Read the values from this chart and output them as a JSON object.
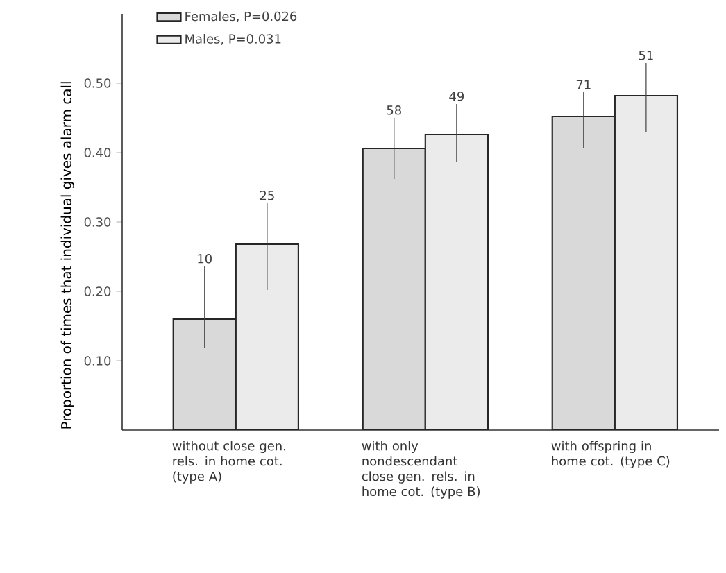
{
  "chart_data": {
    "type": "bar",
    "ylabel": "Proportion of times that individual gives alarm call",
    "categories": [
      "without close gen. rels. in home cot. (type A)",
      "with only nondescendant close gen. rels. in home cot. (type B)",
      "with offspring in home cot. (type C)"
    ],
    "series": [
      {
        "name": "Females, P=0.026",
        "color": "#d9d9d9",
        "values": [
          0.16,
          0.406,
          0.452
        ],
        "errors": [
          [
            0.119,
            0.236
          ],
          [
            0.362,
            0.45
          ],
          [
            0.406,
            0.487
          ]
        ]
      },
      {
        "name": "Males, P=0.031",
        "color": "#ebebeb",
        "values": [
          0.268,
          0.426,
          0.482
        ],
        "errors": [
          [
            0.202,
            0.327
          ],
          [
            0.386,
            0.47
          ],
          [
            0.43,
            0.529
          ]
        ]
      }
    ],
    "annotations": [
      "10",
      "25",
      "58",
      "49",
      "71",
      "51"
    ],
    "ylim": [
      0,
      0.6
    ],
    "yticks": [
      {
        "value": 0.1,
        "label": "0.10"
      },
      {
        "value": 0.2,
        "label": "0.20"
      },
      {
        "value": 0.3,
        "label": "0.30"
      },
      {
        "value": 0.4,
        "label": "0.40"
      },
      {
        "value": 0.5,
        "label": "0.50"
      }
    ],
    "legend": "top left",
    "grid": false
  }
}
